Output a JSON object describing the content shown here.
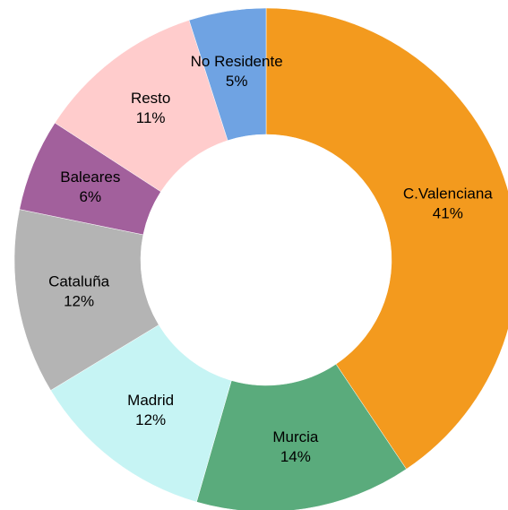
{
  "chart_data": {
    "type": "donut",
    "categories": [
      "C.Valenciana",
      "Murcia",
      "Madrid",
      "Cataluña",
      "Baleares",
      "Resto",
      "No Residente"
    ],
    "values": [
      41,
      14,
      12,
      12,
      6,
      11,
      5
    ],
    "value_labels": [
      "41%",
      "14%",
      "12%",
      "12%",
      "6%",
      "11%",
      "5%"
    ],
    "colors": [
      "#f39a1e",
      "#5aab7c",
      "#c6f4f4",
      "#b4b4b4",
      "#a2609c",
      "#ffcccc",
      "#6fa3e3"
    ]
  }
}
